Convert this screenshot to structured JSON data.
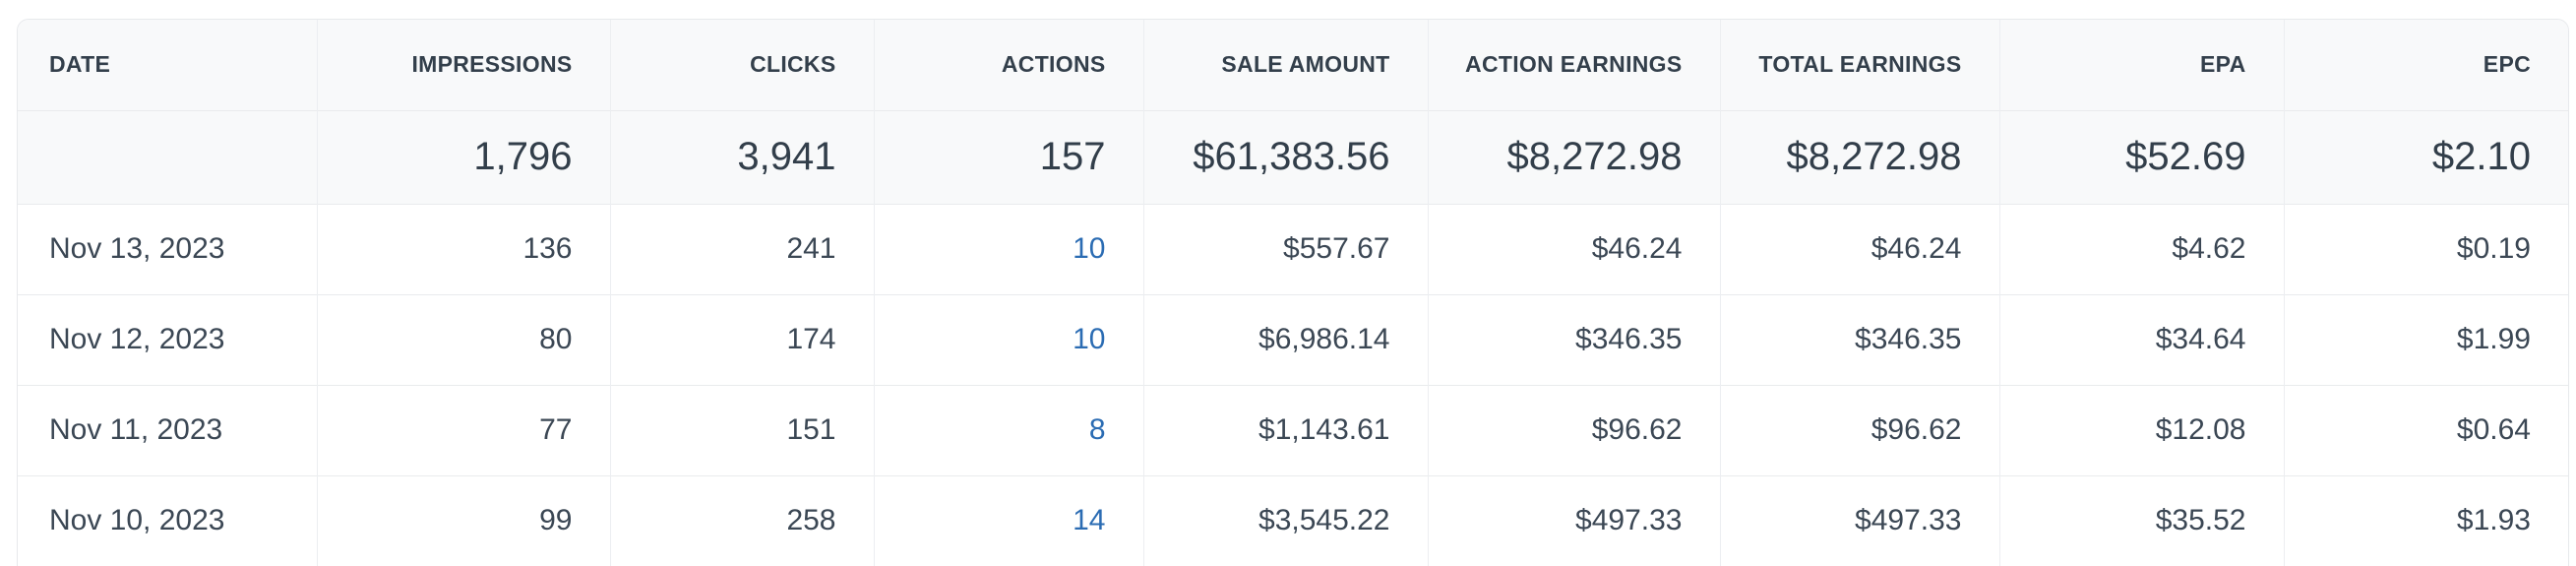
{
  "colors": {
    "header_background": "#f8f9fa",
    "summary_row_background": "#f8f9fa",
    "data_row_background": "#ffffff",
    "header_text": "#333f4b",
    "body_text": "#3b4754",
    "link_blue": "#2b6cb3",
    "border": "#e9ebed"
  },
  "table": {
    "columns": [
      {
        "key": "date",
        "label": "DATE"
      },
      {
        "key": "impressions",
        "label": "IMPRESSIONS"
      },
      {
        "key": "clicks",
        "label": "CLICKS"
      },
      {
        "key": "actions",
        "label": "ACTIONS"
      },
      {
        "key": "sale_amount",
        "label": "SALE AMOUNT"
      },
      {
        "key": "action_earnings",
        "label": "ACTION EARNINGS"
      },
      {
        "key": "total_earnings",
        "label": "TOTAL EARNINGS"
      },
      {
        "key": "epa",
        "label": "EPA"
      },
      {
        "key": "epc",
        "label": "EPC"
      }
    ],
    "summary": {
      "date": "",
      "impressions": "1,796",
      "clicks": "3,941",
      "actions": "157",
      "sale_amount": "$61,383.56",
      "action_earnings": "$8,272.98",
      "total_earnings": "$8,272.98",
      "epa": "$52.69",
      "epc": "$2.10"
    },
    "rows": [
      {
        "date": "Nov 13, 2023",
        "impressions": "136",
        "clicks": "241",
        "actions": "10",
        "sale_amount": "$557.67",
        "action_earnings": "$46.24",
        "total_earnings": "$46.24",
        "epa": "$4.62",
        "epc": "$0.19"
      },
      {
        "date": "Nov 12, 2023",
        "impressions": "80",
        "clicks": "174",
        "actions": "10",
        "sale_amount": "$6,986.14",
        "action_earnings": "$346.35",
        "total_earnings": "$346.35",
        "epa": "$34.64",
        "epc": "$1.99"
      },
      {
        "date": "Nov 11, 2023",
        "impressions": "77",
        "clicks": "151",
        "actions": "8",
        "sale_amount": "$1,143.61",
        "action_earnings": "$96.62",
        "total_earnings": "$96.62",
        "epa": "$12.08",
        "epc": "$0.64"
      },
      {
        "date": "Nov 10, 2023",
        "impressions": "99",
        "clicks": "258",
        "actions": "14",
        "sale_amount": "$3,545.22",
        "action_earnings": "$497.33",
        "total_earnings": "$497.33",
        "epa": "$35.52",
        "epc": "$1.93"
      }
    ]
  }
}
